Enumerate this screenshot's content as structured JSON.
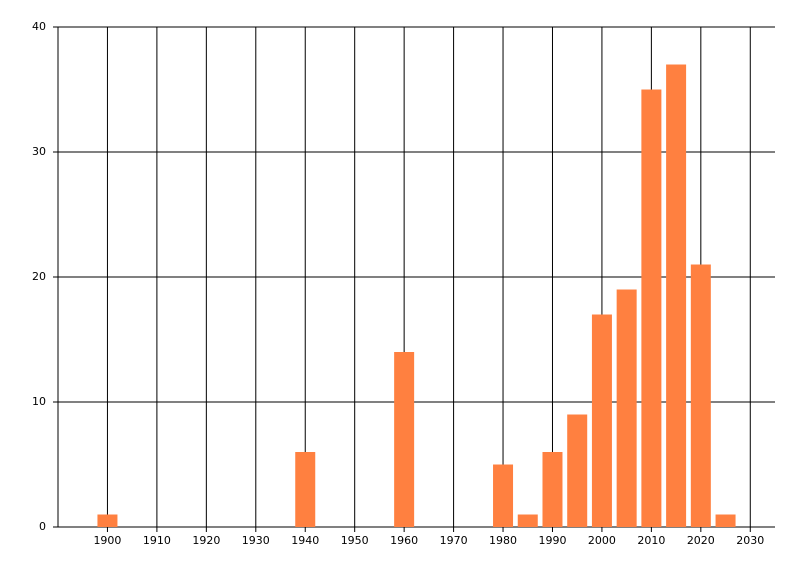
{
  "chart_data": {
    "type": "bar",
    "x": [
      1900,
      1940,
      1960,
      1980,
      1985,
      1990,
      1995,
      2000,
      2005,
      2010,
      2015,
      2020,
      2025
    ],
    "values": [
      1,
      6,
      14,
      5,
      1,
      6,
      9,
      17,
      19,
      35,
      37,
      21,
      1
    ],
    "color": "#ff8040",
    "xlim": [
      1890,
      2035
    ],
    "xticks": [
      1900,
      1910,
      1920,
      1930,
      1940,
      1950,
      1960,
      1970,
      1980,
      1990,
      2000,
      2010,
      2020,
      2030
    ],
    "ylim": [
      0,
      40
    ],
    "yticks": [
      0,
      10,
      20,
      30,
      40
    ],
    "grid": true
  }
}
